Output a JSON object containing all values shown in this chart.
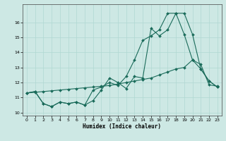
{
  "background_color": "#cde8e4",
  "grid_color": "#b0d8d2",
  "line_color": "#1a6b5a",
  "marker_color": "#1a6b5a",
  "xlabel": "Humidex (Indice chaleur)",
  "xlim": [
    -0.5,
    23.5
  ],
  "ylim": [
    9.8,
    17.2
  ],
  "yticks": [
    10,
    11,
    12,
    13,
    14,
    15,
    16
  ],
  "xticks": [
    0,
    1,
    2,
    3,
    4,
    5,
    6,
    7,
    8,
    9,
    10,
    11,
    12,
    13,
    14,
    15,
    16,
    17,
    18,
    19,
    20,
    21,
    22,
    23
  ],
  "line1_x": [
    0,
    1,
    2,
    3,
    4,
    5,
    6,
    7,
    8,
    9,
    10,
    11,
    12,
    13,
    14,
    15,
    16,
    17,
    18,
    19,
    20,
    21,
    22,
    23
  ],
  "line1_y": [
    11.3,
    11.4,
    10.6,
    10.4,
    10.7,
    10.6,
    10.7,
    10.5,
    10.8,
    11.5,
    12.3,
    12.0,
    11.6,
    12.4,
    12.3,
    15.6,
    15.1,
    15.5,
    16.6,
    16.6,
    15.2,
    12.9,
    12.1,
    11.7
  ],
  "line2_x": [
    0,
    1,
    2,
    3,
    4,
    5,
    6,
    7,
    8,
    9,
    10,
    11,
    12,
    13,
    14,
    15,
    16,
    17,
    18,
    19,
    20,
    21,
    22,
    23
  ],
  "line2_y": [
    11.3,
    11.4,
    10.6,
    10.4,
    10.7,
    10.6,
    10.7,
    10.5,
    11.5,
    11.7,
    12.0,
    11.8,
    12.4,
    13.5,
    14.8,
    15.1,
    15.5,
    16.6,
    16.6,
    15.2,
    13.5,
    12.9,
    12.1,
    11.7
  ],
  "line3_x": [
    0,
    1,
    2,
    3,
    4,
    5,
    6,
    7,
    8,
    9,
    10,
    11,
    12,
    13,
    14,
    15,
    16,
    17,
    18,
    19,
    20,
    21,
    22,
    23
  ],
  "line3_y": [
    11.3,
    11.35,
    11.4,
    11.45,
    11.5,
    11.55,
    11.6,
    11.65,
    11.7,
    11.75,
    11.8,
    11.9,
    12.0,
    12.1,
    12.2,
    12.3,
    12.5,
    12.7,
    12.9,
    13.0,
    13.5,
    13.2,
    11.85,
    11.75
  ]
}
